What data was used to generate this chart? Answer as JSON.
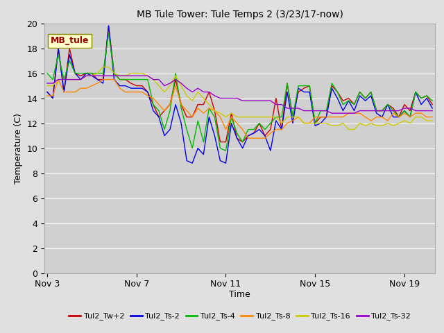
{
  "title": "MB Tule Tower: Tule Temps 2 (3/23/17-now)",
  "xlabel": "Time",
  "ylabel": "Temperature (C)",
  "annotation": "MB_tule",
  "ylim": [
    0,
    20
  ],
  "yticks": [
    0,
    2,
    4,
    6,
    8,
    10,
    12,
    14,
    16,
    18,
    20
  ],
  "xtick_labels": [
    "Nov 3",
    "Nov 7",
    "Nov 11",
    "Nov 15",
    "Nov 19"
  ],
  "bg_color": "#e0e0e0",
  "plot_bg_color": "#d0d0d0",
  "legend_entries": [
    "Tul2_Tw+2",
    "Tul2_Ts-2",
    "Tul2_Ts-4",
    "Tul2_Ts-8",
    "Tul2_Ts-16",
    "Tul2_Ts-32"
  ],
  "line_colors": [
    "#cc0000",
    "#0000ee",
    "#00bb00",
    "#ff8800",
    "#cccc00",
    "#9900cc"
  ],
  "series": {
    "Tul2_Tw+2": [
      14.5,
      14.0,
      18.0,
      14.5,
      18.0,
      16.0,
      15.8,
      16.0,
      16.0,
      15.5,
      15.5,
      19.8,
      16.0,
      15.5,
      15.5,
      15.2,
      15.0,
      15.0,
      14.5,
      13.5,
      12.5,
      13.0,
      13.5,
      15.5,
      13.5,
      12.5,
      12.5,
      13.5,
      13.5,
      14.5,
      13.0,
      10.5,
      10.5,
      12.8,
      10.8,
      10.5,
      11.0,
      11.2,
      12.0,
      11.0,
      11.5,
      14.0,
      11.5,
      15.2,
      12.5,
      14.5,
      14.8,
      15.0,
      12.0,
      12.5,
      12.5,
      15.0,
      14.5,
      13.8,
      14.0,
      13.5,
      14.5,
      14.0,
      14.5,
      13.0,
      13.0,
      13.5,
      13.2,
      12.5,
      13.5,
      13.0,
      14.5,
      14.0,
      14.2,
      13.5
    ],
    "Tul2_Ts-2": [
      14.5,
      14.0,
      18.0,
      14.5,
      17.5,
      16.0,
      15.5,
      16.0,
      15.8,
      15.5,
      15.2,
      19.8,
      15.5,
      15.0,
      15.0,
      14.8,
      14.8,
      14.8,
      14.5,
      13.0,
      12.5,
      11.0,
      11.5,
      13.5,
      12.0,
      9.0,
      8.8,
      10.0,
      9.5,
      12.5,
      11.0,
      9.0,
      8.8,
      12.0,
      10.8,
      10.0,
      11.0,
      11.2,
      11.5,
      11.0,
      9.8,
      12.2,
      11.5,
      14.5,
      12.0,
      14.8,
      14.5,
      14.5,
      11.8,
      12.0,
      12.5,
      14.8,
      14.0,
      13.0,
      13.8,
      13.0,
      14.2,
      13.8,
      14.2,
      12.8,
      12.5,
      13.5,
      12.5,
      12.5,
      13.0,
      12.5,
      14.5,
      13.5,
      14.0,
      13.2
    ],
    "Tul2_Ts-4": [
      16.0,
      15.5,
      17.5,
      15.5,
      17.0,
      16.0,
      16.0,
      16.0,
      16.0,
      16.0,
      16.0,
      19.2,
      16.0,
      15.5,
      15.5,
      15.5,
      15.5,
      15.5,
      15.5,
      13.5,
      13.0,
      11.5,
      13.0,
      16.0,
      13.2,
      11.5,
      10.0,
      12.2,
      10.5,
      13.2,
      12.5,
      10.0,
      9.8,
      12.5,
      11.2,
      10.5,
      11.5,
      11.5,
      12.0,
      11.5,
      12.0,
      12.5,
      12.5,
      15.2,
      12.5,
      15.0,
      15.0,
      15.0,
      12.0,
      13.0,
      13.0,
      15.2,
      14.5,
      13.5,
      13.8,
      13.5,
      14.5,
      14.0,
      14.5,
      13.0,
      13.0,
      13.5,
      13.0,
      12.5,
      13.0,
      12.5,
      14.5,
      14.0,
      14.2,
      13.8
    ],
    "Tul2_Ts-8": [
      14.2,
      14.2,
      15.5,
      14.5,
      14.5,
      14.5,
      14.8,
      14.8,
      15.0,
      15.2,
      15.5,
      15.5,
      15.5,
      14.8,
      14.5,
      14.5,
      14.5,
      14.5,
      14.2,
      14.0,
      13.5,
      13.0,
      13.5,
      15.0,
      13.5,
      13.0,
      12.5,
      13.2,
      12.8,
      13.2,
      13.0,
      12.5,
      11.5,
      12.5,
      12.0,
      11.5,
      10.8,
      10.8,
      10.8,
      10.8,
      11.2,
      11.5,
      11.5,
      12.0,
      12.2,
      12.5,
      12.0,
      12.0,
      12.5,
      12.5,
      12.5,
      12.5,
      12.5,
      12.5,
      12.8,
      12.8,
      12.8,
      12.5,
      12.2,
      12.5,
      12.5,
      12.2,
      12.8,
      12.5,
      12.8,
      12.5,
      12.8,
      12.8,
      12.5,
      12.5
    ],
    "Tul2_Ts-16": [
      15.0,
      15.0,
      15.5,
      15.5,
      15.5,
      15.5,
      15.5,
      15.8,
      15.8,
      16.0,
      16.5,
      16.5,
      16.0,
      15.8,
      15.8,
      16.0,
      16.0,
      16.0,
      15.8,
      15.5,
      15.0,
      14.5,
      15.0,
      15.8,
      15.0,
      14.2,
      13.8,
      14.5,
      14.0,
      13.5,
      13.0,
      12.8,
      12.5,
      12.8,
      12.5,
      12.5,
      12.5,
      12.5,
      12.5,
      12.5,
      12.5,
      12.5,
      12.0,
      12.5,
      12.5,
      12.5,
      12.0,
      12.0,
      12.0,
      12.0,
      12.0,
      11.8,
      11.8,
      12.0,
      11.5,
      11.5,
      12.0,
      11.8,
      12.0,
      11.8,
      11.8,
      12.0,
      11.8,
      12.0,
      12.2,
      12.0,
      12.5,
      12.5,
      12.2,
      12.2
    ],
    "Tul2_Ts-32": [
      15.2,
      15.2,
      15.5,
      15.5,
      15.5,
      15.5,
      15.5,
      15.8,
      15.8,
      15.8,
      15.8,
      15.8,
      15.8,
      15.8,
      15.8,
      15.8,
      15.8,
      15.8,
      15.8,
      15.5,
      15.5,
      15.0,
      15.2,
      15.5,
      15.2,
      14.8,
      14.5,
      14.8,
      14.5,
      14.5,
      14.2,
      14.0,
      14.0,
      14.0,
      14.0,
      13.8,
      13.8,
      13.8,
      13.8,
      13.8,
      13.8,
      13.5,
      13.5,
      13.2,
      13.2,
      13.2,
      13.0,
      13.0,
      13.0,
      13.0,
      13.0,
      12.8,
      12.8,
      12.8,
      12.8,
      12.8,
      13.0,
      13.0,
      13.0,
      13.0,
      13.0,
      13.0,
      13.0,
      13.0,
      13.2,
      13.2,
      13.0,
      13.0,
      13.0,
      13.0
    ]
  },
  "xtick_positions": [
    0,
    16,
    32,
    48,
    64
  ],
  "total_points": 70,
  "title_fontsize": 10,
  "axis_fontsize": 9,
  "tick_fontsize": 9,
  "legend_fontsize": 8
}
